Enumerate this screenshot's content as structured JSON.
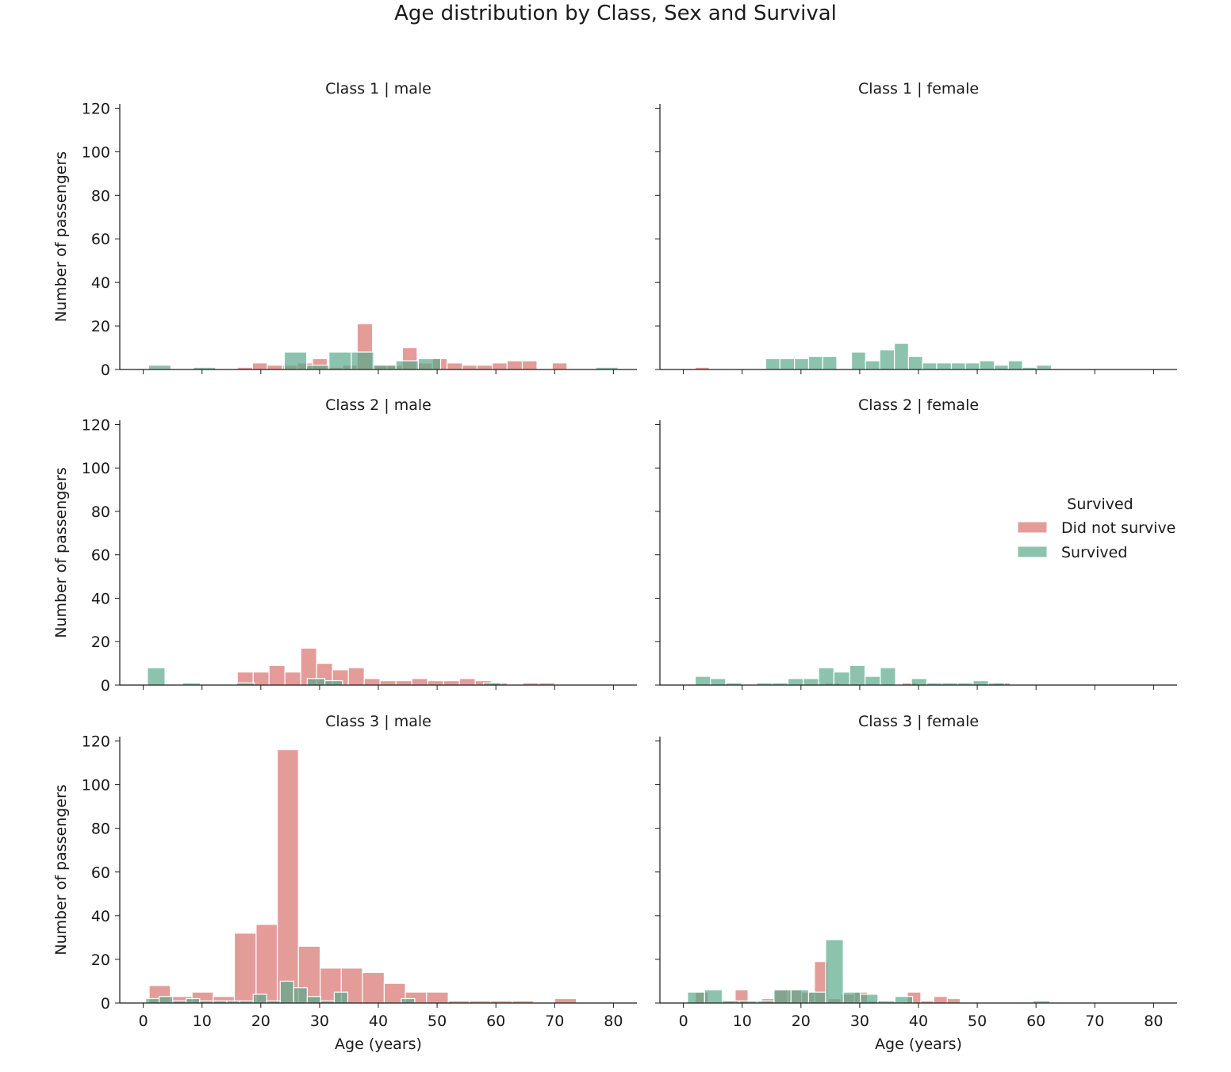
{
  "title": "Age distribution by Class, Sex and Survival",
  "chart_data": [
    {
      "type": "histogram",
      "panel_title": "Class 1 | male",
      "xlabel": "",
      "ylabel": "Number of passengers",
      "xlim": [
        -4,
        84
      ],
      "ylim": [
        0,
        122
      ],
      "xticks": [
        0,
        10,
        20,
        30,
        40,
        50,
        60,
        70,
        80
      ],
      "xtick_labels": [],
      "yticks": [
        0,
        20,
        40,
        60,
        80,
        100,
        120
      ],
      "series": [
        {
          "name": "Did not survive",
          "color": "#d9726e",
          "bins": [
            [
              16.0,
              18.6,
              1
            ],
            [
              18.6,
              21.1,
              3
            ],
            [
              21.1,
              23.7,
              2
            ],
            [
              23.7,
              26.2,
              2
            ],
            [
              26.2,
              28.8,
              3
            ],
            [
              28.8,
              31.3,
              5
            ],
            [
              31.3,
              33.9,
              1
            ],
            [
              33.9,
              36.4,
              2
            ],
            [
              36.4,
              39.0,
              21
            ],
            [
              39.0,
              41.5,
              2
            ],
            [
              41.5,
              44.1,
              2
            ],
            [
              44.1,
              46.6,
              10
            ],
            [
              46.6,
              49.2,
              3
            ],
            [
              49.2,
              51.7,
              5
            ],
            [
              51.7,
              54.3,
              3
            ],
            [
              54.3,
              56.8,
              2
            ],
            [
              56.8,
              59.4,
              2
            ],
            [
              59.4,
              61.9,
              3
            ],
            [
              61.9,
              64.5,
              4
            ],
            [
              64.5,
              67.0,
              4
            ],
            [
              69.6,
              72.1,
              3
            ]
          ]
        },
        {
          "name": "Survived",
          "color": "#5aaa8c",
          "bins": [
            [
              0.9,
              4.7,
              2
            ],
            [
              8.5,
              12.3,
              1
            ],
            [
              24.0,
              27.8,
              8
            ],
            [
              27.8,
              31.6,
              2
            ],
            [
              31.6,
              35.4,
              8
            ],
            [
              35.4,
              39.2,
              8
            ],
            [
              39.2,
              43.0,
              2
            ],
            [
              43.0,
              46.8,
              4
            ],
            [
              46.8,
              50.6,
              5
            ],
            [
              77.0,
              80.8,
              1
            ]
          ]
        }
      ]
    },
    {
      "type": "histogram",
      "panel_title": "Class 1 | female",
      "xlabel": "",
      "ylabel": "",
      "xlim": [
        -4,
        84
      ],
      "ylim": [
        0,
        122
      ],
      "xticks": [
        0,
        10,
        20,
        30,
        40,
        50,
        60,
        70,
        80
      ],
      "xtick_labels": [],
      "yticks": [
        0,
        20,
        40,
        60,
        80,
        100,
        120
      ],
      "series": [
        {
          "name": "Did not survive",
          "color": "#d9726e",
          "bins": [
            [
              2.0,
              4.4,
              1
            ]
          ]
        },
        {
          "name": "Survived",
          "color": "#5aaa8c",
          "bins": [
            [
              14.0,
              16.4,
              5
            ],
            [
              16.4,
              18.9,
              5
            ],
            [
              18.9,
              21.3,
              5
            ],
            [
              21.3,
              23.7,
              6
            ],
            [
              23.7,
              26.1,
              6
            ],
            [
              28.6,
              31.0,
              8
            ],
            [
              31.0,
              33.4,
              4
            ],
            [
              33.4,
              35.9,
              9
            ],
            [
              35.9,
              38.3,
              12
            ],
            [
              38.3,
              40.7,
              6
            ],
            [
              40.7,
              43.1,
              3
            ],
            [
              43.1,
              45.6,
              3
            ],
            [
              45.6,
              48.0,
              3
            ],
            [
              48.0,
              50.4,
              3
            ],
            [
              50.4,
              52.9,
              4
            ],
            [
              52.9,
              55.3,
              2
            ],
            [
              55.3,
              57.7,
              4
            ],
            [
              57.7,
              60.1,
              1
            ],
            [
              60.1,
              62.6,
              2
            ]
          ]
        }
      ]
    },
    {
      "type": "histogram",
      "panel_title": "Class 2 | male",
      "xlabel": "",
      "ylabel": "Number of passengers",
      "xlim": [
        -4,
        84
      ],
      "ylim": [
        0,
        122
      ],
      "xticks": [
        0,
        10,
        20,
        30,
        40,
        50,
        60,
        70,
        80
      ],
      "xtick_labels": [],
      "yticks": [
        0,
        20,
        40,
        60,
        80,
        100,
        120
      ],
      "series": [
        {
          "name": "Did not survive",
          "color": "#d9726e",
          "bins": [
            [
              16.0,
              18.7,
              6
            ],
            [
              18.7,
              21.4,
              6
            ],
            [
              21.4,
              24.1,
              9
            ],
            [
              24.1,
              26.8,
              6
            ],
            [
              26.8,
              29.5,
              17
            ],
            [
              29.5,
              32.2,
              10
            ],
            [
              32.2,
              34.9,
              7
            ],
            [
              34.9,
              37.6,
              8
            ],
            [
              37.6,
              40.3,
              3
            ],
            [
              40.3,
              43.0,
              2
            ],
            [
              43.0,
              45.7,
              2
            ],
            [
              45.7,
              48.4,
              3
            ],
            [
              48.4,
              51.1,
              2
            ],
            [
              51.1,
              53.8,
              2
            ],
            [
              53.8,
              56.5,
              3
            ],
            [
              56.5,
              59.2,
              2
            ],
            [
              59.2,
              61.9,
              1
            ],
            [
              64.6,
              67.3,
              1
            ],
            [
              67.3,
              70.0,
              1
            ]
          ]
        },
        {
          "name": "Survived",
          "color": "#5aaa8c",
          "bins": [
            [
              0.7,
              3.7,
              8
            ],
            [
              6.7,
              9.7,
              1
            ],
            [
              15.9,
              18.9,
              1
            ],
            [
              27.9,
              30.9,
              3
            ],
            [
              30.9,
              33.9,
              2
            ],
            [
              57.9,
              60.9,
              1
            ]
          ]
        }
      ]
    },
    {
      "type": "histogram",
      "panel_title": "Class 2 | female",
      "xlabel": "",
      "ylabel": "",
      "xlim": [
        -4,
        84
      ],
      "ylim": [
        0,
        122
      ],
      "xticks": [
        0,
        10,
        20,
        30,
        40,
        50,
        60,
        70,
        80
      ],
      "xtick_labels": [],
      "yticks": [
        0,
        20,
        40,
        60,
        80,
        100,
        120
      ],
      "series": [
        {
          "name": "Did not survive",
          "color": "#d9726e",
          "bins": [
            [
              24.0,
              26.6,
              1
            ],
            [
              37.2,
              39.8,
              1
            ],
            [
              53.0,
              55.6,
              1
            ]
          ]
        },
        {
          "name": "Survived",
          "color": "#5aaa8c",
          "bins": [
            [
              2.0,
              4.6,
              4
            ],
            [
              4.6,
              7.2,
              3
            ],
            [
              7.2,
              9.9,
              1
            ],
            [
              12.5,
              15.1,
              1
            ],
            [
              15.1,
              17.8,
              1
            ],
            [
              17.8,
              20.4,
              3
            ],
            [
              20.4,
              23.0,
              3
            ],
            [
              23.0,
              25.6,
              8
            ],
            [
              25.6,
              28.3,
              6
            ],
            [
              28.3,
              30.9,
              9
            ],
            [
              30.9,
              33.5,
              4
            ],
            [
              33.5,
              36.1,
              8
            ],
            [
              38.8,
              41.4,
              3
            ],
            [
              41.4,
              44.0,
              1
            ],
            [
              44.0,
              46.7,
              1
            ],
            [
              46.7,
              49.3,
              1
            ],
            [
              49.3,
              51.9,
              2
            ],
            [
              51.9,
              54.6,
              1
            ]
          ]
        }
      ]
    },
    {
      "type": "histogram",
      "panel_title": "Class 3 | male",
      "xlabel": "Age (years)",
      "ylabel": "Number of passengers",
      "xlim": [
        -4,
        84
      ],
      "ylim": [
        0,
        122
      ],
      "xticks": [
        0,
        10,
        20,
        30,
        40,
        50,
        60,
        70,
        80
      ],
      "xtick_labels": [
        "0",
        "10",
        "20",
        "30",
        "40",
        "50",
        "60",
        "70",
        "80"
      ],
      "yticks": [
        0,
        20,
        40,
        60,
        80,
        100,
        120
      ],
      "series": [
        {
          "name": "Did not survive",
          "color": "#d9726e",
          "bins": [
            [
              1.0,
              4.6,
              8
            ],
            [
              4.6,
              8.3,
              3
            ],
            [
              8.3,
              11.9,
              5
            ],
            [
              11.9,
              15.5,
              3
            ],
            [
              15.5,
              19.2,
              32
            ],
            [
              19.2,
              22.8,
              36
            ],
            [
              22.8,
              26.4,
              116
            ],
            [
              26.4,
              30.1,
              26
            ],
            [
              30.1,
              33.7,
              16
            ],
            [
              33.7,
              37.3,
              16
            ],
            [
              37.3,
              41.0,
              14
            ],
            [
              41.0,
              44.6,
              9
            ],
            [
              44.6,
              48.2,
              5
            ],
            [
              48.2,
              51.9,
              5
            ],
            [
              51.9,
              55.5,
              1
            ],
            [
              55.5,
              59.1,
              1
            ],
            [
              59.1,
              62.8,
              1
            ],
            [
              62.8,
              66.4,
              1
            ],
            [
              70.0,
              73.7,
              2
            ]
          ]
        },
        {
          "name": "Survived",
          "color": "#5aaa8c",
          "bins": [
            [
              0.4,
              2.7,
              2
            ],
            [
              2.7,
              5.0,
              3
            ],
            [
              5.0,
              7.3,
              1
            ],
            [
              7.3,
              9.6,
              2
            ],
            [
              9.6,
              11.9,
              1
            ],
            [
              11.9,
              14.2,
              1
            ],
            [
              14.2,
              16.4,
              1
            ],
            [
              16.4,
              18.7,
              1
            ],
            [
              18.7,
              21.0,
              4
            ],
            [
              21.0,
              23.3,
              1
            ],
            [
              23.3,
              25.6,
              10
            ],
            [
              25.6,
              27.9,
              7
            ],
            [
              27.9,
              30.2,
              3
            ],
            [
              30.2,
              32.5,
              1
            ],
            [
              32.5,
              34.8,
              5
            ],
            [
              43.9,
              46.2,
              2
            ]
          ]
        }
      ]
    },
    {
      "type": "histogram",
      "panel_title": "Class 3 | female",
      "xlabel": "Age (years)",
      "ylabel": "",
      "xlim": [
        -4,
        84
      ],
      "ylim": [
        0,
        122
      ],
      "xticks": [
        0,
        10,
        20,
        30,
        40,
        50,
        60,
        70,
        80
      ],
      "xtick_labels": [
        "0",
        "10",
        "20",
        "30",
        "40",
        "50",
        "60",
        "70",
        "80"
      ],
      "yticks": [
        0,
        20,
        40,
        60,
        80,
        100,
        120
      ],
      "series": [
        {
          "name": "Did not survive",
          "color": "#d9726e",
          "bins": [
            [
              2.0,
              4.2,
              5
            ],
            [
              6.5,
              8.8,
              1
            ],
            [
              8.8,
              11.0,
              6
            ],
            [
              13.3,
              15.5,
              2
            ],
            [
              15.5,
              17.8,
              6
            ],
            [
              17.8,
              20.1,
              6
            ],
            [
              20.1,
              22.3,
              5
            ],
            [
              22.3,
              24.6,
              19
            ],
            [
              24.6,
              26.8,
              2
            ],
            [
              26.8,
              29.1,
              4
            ],
            [
              29.1,
              31.3,
              5
            ],
            [
              31.3,
              33.6,
              1
            ],
            [
              38.1,
              40.4,
              5
            ],
            [
              40.4,
              42.6,
              1
            ],
            [
              42.6,
              44.9,
              3
            ],
            [
              44.9,
              47.1,
              2
            ]
          ]
        },
        {
          "name": "Survived",
          "color": "#5aaa8c",
          "bins": [
            [
              0.7,
              3.6,
              5
            ],
            [
              3.6,
              6.6,
              6
            ],
            [
              6.6,
              9.5,
              1
            ],
            [
              9.5,
              12.5,
              1
            ],
            [
              12.5,
              15.4,
              1
            ],
            [
              15.4,
              18.3,
              6
            ],
            [
              18.3,
              21.3,
              6
            ],
            [
              21.3,
              24.2,
              5
            ],
            [
              24.2,
              27.2,
              29
            ],
            [
              27.2,
              30.1,
              5
            ],
            [
              30.1,
              33.1,
              4
            ],
            [
              33.1,
              36.0,
              1
            ],
            [
              36.0,
              39.0,
              3
            ],
            [
              59.5,
              62.4,
              1
            ]
          ]
        }
      ]
    }
  ],
  "legend": {
    "title": "Survived",
    "entries": [
      {
        "label": "Did not survive",
        "color": "#d9726e"
      },
      {
        "label": "Survived",
        "color": "#5aaa8c"
      }
    ]
  }
}
